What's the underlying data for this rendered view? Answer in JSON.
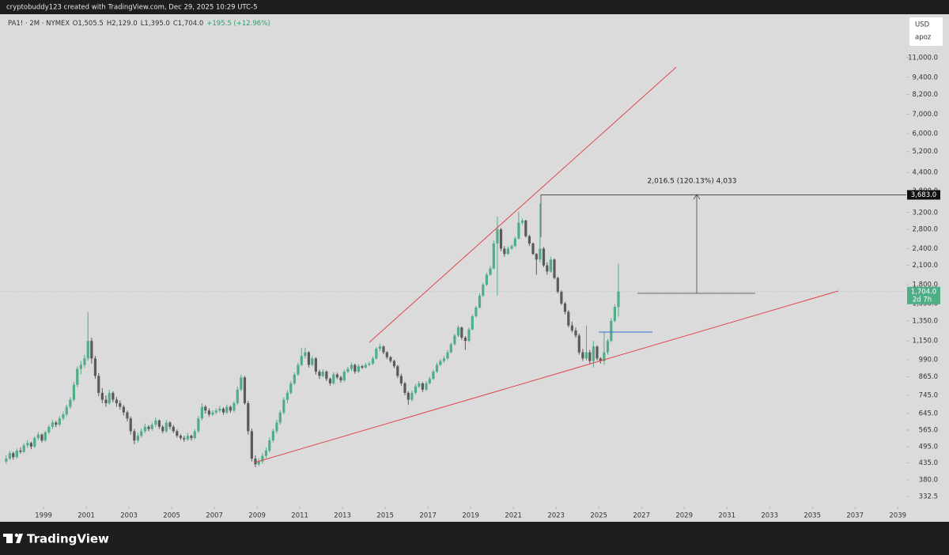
{
  "page": {
    "header": "cryptobuddy123 created with TradingView.com, Dec 29, 2025 10:29 UTC-5",
    "brand": "TradingView",
    "currency": "USD",
    "scale_mode": "apoz"
  },
  "chart_data": {
    "type": "candlestick",
    "legend_symbol": "PA1! · 2M · NYMEX",
    "legend_values": [
      "O1,505.5",
      "H2,129.0",
      "L1,395.0",
      "C1,704.0",
      "+195.5 (+12.96%)"
    ],
    "measure_label": "2,016.5 (120.13%) 4,033",
    "countdown": "2d 7h",
    "up_color": "#4fae86",
    "down_color": "#5a5a5a",
    "trend_color": "#e0454f",
    "log_scale": true,
    "xlim": [
      1996.96,
      2039.4
    ],
    "xticks": [
      1999,
      2001,
      2003,
      2005,
      2007,
      2009,
      2011,
      2013,
      2015,
      2017,
      2019,
      2021,
      2023,
      2025,
      2027,
      2029,
      2031,
      2033,
      2035,
      2037,
      2039
    ],
    "ylim": [
      272,
      15540
    ],
    "yticks": [
      {
        "value": 11000,
        "label": "11,000.0"
      },
      {
        "value": 9400,
        "label": "9,400.0"
      },
      {
        "value": 8200,
        "label": "8,200.0"
      },
      {
        "value": 7000,
        "label": "7,000.0"
      },
      {
        "value": 6000,
        "label": "6,000.0"
      },
      {
        "value": 5200,
        "label": "5,200.0"
      },
      {
        "value": 4400,
        "label": "4,400.0"
      },
      {
        "value": 3800,
        "label": "3,800.0"
      },
      {
        "value": 3200,
        "label": "3,200.0"
      },
      {
        "value": 2800,
        "label": "2,800.0"
      },
      {
        "value": 2400,
        "label": "2,400.0"
      },
      {
        "value": 2100,
        "label": "2,100.0"
      },
      {
        "value": 1800,
        "label": "1,800.0"
      },
      {
        "value": 1550,
        "label": "1,550.0"
      },
      {
        "value": 1350,
        "label": "1,350.0"
      },
      {
        "value": 1150,
        "label": "1,150.0"
      },
      {
        "value": 990,
        "label": "990.0"
      },
      {
        "value": 865,
        "label": "865.0"
      },
      {
        "value": 745,
        "label": "745.0"
      },
      {
        "value": 645,
        "label": "645.0"
      },
      {
        "value": 565,
        "label": "565.0"
      },
      {
        "value": 495,
        "label": "495.0"
      },
      {
        "value": 435,
        "label": "435.0"
      },
      {
        "value": 380,
        "label": "380.0"
      },
      {
        "value": 332.5,
        "label": "332.5"
      }
    ],
    "price_markers": [
      {
        "value": 3683,
        "label": "3,683.0"
      },
      {
        "value": 1704,
        "label": "1,704.0"
      }
    ],
    "x": [
      1997.25,
      1997.42,
      1997.58,
      1997.75,
      1997.92,
      1998.08,
      1998.25,
      1998.42,
      1998.58,
      1998.75,
      1998.92,
      1999.08,
      1999.25,
      1999.42,
      1999.58,
      1999.75,
      1999.92,
      2000.08,
      2000.25,
      2000.42,
      2000.58,
      2000.75,
      2000.92,
      2001.08,
      2001.25,
      2001.42,
      2001.58,
      2001.75,
      2001.92,
      2002.08,
      2002.25,
      2002.42,
      2002.58,
      2002.75,
      2002.92,
      2003.08,
      2003.25,
      2003.42,
      2003.58,
      2003.75,
      2003.92,
      2004.08,
      2004.25,
      2004.42,
      2004.58,
      2004.75,
      2004.92,
      2005.08,
      2005.25,
      2005.42,
      2005.58,
      2005.75,
      2005.92,
      2006.08,
      2006.25,
      2006.42,
      2006.58,
      2006.75,
      2006.92,
      2007.08,
      2007.25,
      2007.42,
      2007.58,
      2007.75,
      2007.92,
      2008.08,
      2008.25,
      2008.42,
      2008.58,
      2008.75,
      2008.92,
      2009.08,
      2009.25,
      2009.42,
      2009.58,
      2009.75,
      2009.92,
      2010.08,
      2010.25,
      2010.42,
      2010.58,
      2010.75,
      2010.92,
      2011.08,
      2011.25,
      2011.42,
      2011.58,
      2011.75,
      2011.92,
      2012.08,
      2012.25,
      2012.42,
      2012.58,
      2012.75,
      2012.92,
      2013.08,
      2013.25,
      2013.42,
      2013.58,
      2013.75,
      2013.92,
      2014.08,
      2014.25,
      2014.42,
      2014.58,
      2014.75,
      2014.92,
      2015.08,
      2015.25,
      2015.42,
      2015.58,
      2015.75,
      2015.92,
      2016.08,
      2016.25,
      2016.42,
      2016.58,
      2016.75,
      2016.92,
      2017.08,
      2017.25,
      2017.42,
      2017.58,
      2017.75,
      2017.92,
      2018.08,
      2018.25,
      2018.42,
      2018.58,
      2018.75,
      2018.92,
      2019.08,
      2019.25,
      2019.42,
      2019.58,
      2019.75,
      2019.92,
      2020.08,
      2020.25,
      2020.42,
      2020.58,
      2020.75,
      2020.92,
      2021.08,
      2021.25,
      2021.42,
      2021.58,
      2021.75,
      2021.92,
      2022.08,
      2022.25,
      2022.42,
      2022.58,
      2022.75,
      2022.92,
      2023.08,
      2023.25,
      2023.42,
      2023.58,
      2023.75,
      2023.92,
      2024.08,
      2024.25,
      2024.42,
      2024.58,
      2024.75,
      2024.92,
      2025.08,
      2025.25,
      2025.42,
      2025.58,
      2025.75,
      2025.92
    ],
    "candles": [
      [
        440,
        462,
        432,
        450
      ],
      [
        450,
        478,
        445,
        470
      ],
      [
        470,
        476,
        446,
        455
      ],
      [
        455,
        488,
        450,
        480
      ],
      [
        480,
        492,
        468,
        475
      ],
      [
        475,
        508,
        470,
        500
      ],
      [
        500,
        522,
        490,
        510
      ],
      [
        510,
        515,
        485,
        495
      ],
      [
        495,
        538,
        490,
        530
      ],
      [
        530,
        556,
        522,
        545
      ],
      [
        545,
        550,
        512,
        520
      ],
      [
        520,
        562,
        515,
        555
      ],
      [
        555,
        590,
        548,
        580
      ],
      [
        580,
        612,
        570,
        600
      ],
      [
        600,
        608,
        578,
        590
      ],
      [
        590,
        632,
        582,
        620
      ],
      [
        620,
        655,
        610,
        640
      ],
      [
        640,
        692,
        630,
        680
      ],
      [
        680,
        735,
        668,
        720
      ],
      [
        720,
        830,
        710,
        810
      ],
      [
        810,
        940,
        795,
        920
      ],
      [
        920,
        980,
        880,
        950
      ],
      [
        950,
        1030,
        930,
        1000
      ],
      [
        1000,
        1446,
        980,
        1150
      ],
      [
        1150,
        1180,
        960,
        1000
      ],
      [
        1000,
        1020,
        850,
        870
      ],
      [
        870,
        890,
        740,
        760
      ],
      [
        760,
        790,
        700,
        720
      ],
      [
        720,
        745,
        680,
        700
      ],
      [
        700,
        780,
        690,
        760
      ],
      [
        760,
        770,
        705,
        720
      ],
      [
        720,
        735,
        680,
        700
      ],
      [
        700,
        715,
        665,
        680
      ],
      [
        680,
        690,
        635,
        650
      ],
      [
        650,
        660,
        605,
        620
      ],
      [
        620,
        630,
        545,
        560
      ],
      [
        560,
        570,
        505,
        520
      ],
      [
        520,
        552,
        512,
        540
      ],
      [
        540,
        572,
        532,
        560
      ],
      [
        560,
        595,
        552,
        580
      ],
      [
        580,
        588,
        560,
        570
      ],
      [
        570,
        600,
        562,
        590
      ],
      [
        590,
        625,
        580,
        610
      ],
      [
        610,
        615,
        570,
        580
      ],
      [
        580,
        588,
        550,
        560
      ],
      [
        560,
        612,
        552,
        600
      ],
      [
        600,
        606,
        568,
        580
      ],
      [
        580,
        588,
        552,
        560
      ],
      [
        560,
        568,
        532,
        540
      ],
      [
        540,
        548,
        522,
        530
      ],
      [
        530,
        540,
        515,
        525
      ],
      [
        525,
        552,
        518,
        540
      ],
      [
        540,
        545,
        520,
        530
      ],
      [
        530,
        570,
        525,
        560
      ],
      [
        560,
        632,
        552,
        620
      ],
      [
        620,
        700,
        610,
        680
      ],
      [
        680,
        690,
        645,
        660
      ],
      [
        660,
        672,
        628,
        640
      ],
      [
        640,
        662,
        632,
        650
      ],
      [
        650,
        672,
        640,
        660
      ],
      [
        660,
        685,
        650,
        670
      ],
      [
        670,
        678,
        638,
        650
      ],
      [
        650,
        692,
        642,
        680
      ],
      [
        680,
        688,
        648,
        660
      ],
      [
        660,
        712,
        652,
        700
      ],
      [
        700,
        800,
        690,
        780
      ],
      [
        780,
        880,
        770,
        860
      ],
      [
        860,
        870,
        690,
        700
      ],
      [
        700,
        712,
        545,
        560
      ],
      [
        560,
        572,
        440,
        450
      ],
      [
        450,
        462,
        420,
        430
      ],
      [
        430,
        452,
        424,
        440
      ],
      [
        440,
        470,
        432,
        460
      ],
      [
        460,
        492,
        452,
        480
      ],
      [
        480,
        532,
        472,
        520
      ],
      [
        520,
        572,
        512,
        560
      ],
      [
        560,
        615,
        550,
        600
      ],
      [
        600,
        662,
        590,
        650
      ],
      [
        650,
        735,
        640,
        720
      ],
      [
        720,
        775,
        700,
        760
      ],
      [
        760,
        835,
        750,
        820
      ],
      [
        820,
        895,
        810,
        880
      ],
      [
        880,
        968,
        870,
        950
      ],
      [
        950,
        1085,
        940,
        1020
      ],
      [
        1020,
        1090,
        1000,
        1050
      ],
      [
        1050,
        1060,
        930,
        950
      ],
      [
        950,
        1020,
        940,
        1000
      ],
      [
        1000,
        1010,
        880,
        900
      ],
      [
        900,
        915,
        850,
        870
      ],
      [
        870,
        918,
        860,
        900
      ],
      [
        900,
        910,
        835,
        850
      ],
      [
        850,
        860,
        805,
        820
      ],
      [
        820,
        895,
        812,
        880
      ],
      [
        880,
        892,
        848,
        860
      ],
      [
        860,
        872,
        825,
        840
      ],
      [
        840,
        915,
        832,
        900
      ],
      [
        900,
        935,
        890,
        920
      ],
      [
        920,
        968,
        905,
        950
      ],
      [
        950,
        960,
        885,
        900
      ],
      [
        900,
        955,
        892,
        940
      ],
      [
        940,
        950,
        918,
        930
      ],
      [
        930,
        965,
        922,
        950
      ],
      [
        950,
        975,
        940,
        960
      ],
      [
        960,
        1015,
        950,
        1000
      ],
      [
        1000,
        1095,
        990,
        1080
      ],
      [
        1080,
        1125,
        1060,
        1100
      ],
      [
        1100,
        1110,
        1035,
        1050
      ],
      [
        1050,
        1060,
        995,
        1010
      ],
      [
        1010,
        1020,
        965,
        980
      ],
      [
        980,
        990,
        925,
        940
      ],
      [
        940,
        950,
        855,
        870
      ],
      [
        870,
        885,
        805,
        820
      ],
      [
        820,
        830,
        745,
        760
      ],
      [
        760,
        770,
        690,
        720
      ],
      [
        720,
        775,
        710,
        760
      ],
      [
        760,
        815,
        750,
        800
      ],
      [
        800,
        835,
        790,
        820
      ],
      [
        820,
        828,
        765,
        780
      ],
      [
        780,
        835,
        772,
        820
      ],
      [
        820,
        865,
        812,
        850
      ],
      [
        850,
        915,
        842,
        900
      ],
      [
        900,
        968,
        890,
        950
      ],
      [
        950,
        995,
        940,
        980
      ],
      [
        980,
        1020,
        965,
        1000
      ],
      [
        1000,
        1070,
        990,
        1050
      ],
      [
        1050,
        1135,
        1040,
        1120
      ],
      [
        1120,
        1218,
        1110,
        1200
      ],
      [
        1200,
        1300,
        1185,
        1280
      ],
      [
        1280,
        1290,
        1160,
        1180
      ],
      [
        1180,
        1195,
        1070,
        1150
      ],
      [
        1150,
        1280,
        1140,
        1260
      ],
      [
        1260,
        1420,
        1250,
        1400
      ],
      [
        1400,
        1520,
        1385,
        1500
      ],
      [
        1500,
        1680,
        1490,
        1650
      ],
      [
        1650,
        1830,
        1630,
        1800
      ],
      [
        1800,
        1980,
        1780,
        1950
      ],
      [
        1950,
        2090,
        1930,
        2050
      ],
      [
        2050,
        2560,
        2030,
        2500
      ],
      [
        2500,
        3100,
        1650,
        2800
      ],
      [
        2800,
        2830,
        2350,
        2400
      ],
      [
        2400,
        2450,
        2250,
        2300
      ],
      [
        2300,
        2440,
        2280,
        2400
      ],
      [
        2400,
        2480,
        2380,
        2450
      ],
      [
        2450,
        2640,
        2430,
        2600
      ],
      [
        2600,
        3220,
        2580,
        2950
      ],
      [
        2950,
        3050,
        2900,
        3000
      ],
      [
        3000,
        3020,
        2620,
        2650
      ],
      [
        2650,
        2680,
        2450,
        2500
      ],
      [
        2500,
        2520,
        2280,
        2300
      ],
      [
        2300,
        2320,
        1950,
        2200
      ],
      [
        2200,
        3440,
        2150,
        2400
      ],
      [
        2400,
        2430,
        2070,
        2100
      ],
      [
        2100,
        2150,
        1950,
        2000
      ],
      [
        2000,
        2250,
        1980,
        2200
      ],
      [
        2200,
        2220,
        1880,
        1900
      ],
      [
        1900,
        1920,
        1680,
        1700
      ],
      [
        1700,
        1720,
        1530,
        1550
      ],
      [
        1550,
        1570,
        1420,
        1450
      ],
      [
        1450,
        1470,
        1280,
        1300
      ],
      [
        1300,
        1340,
        1230,
        1250
      ],
      [
        1250,
        1280,
        1180,
        1200
      ],
      [
        1200,
        1220,
        1030,
        1050
      ],
      [
        1050,
        1080,
        980,
        1000
      ],
      [
        1000,
        1300,
        985,
        1050
      ],
      [
        1050,
        1070,
        960,
        980
      ],
      [
        980,
        1150,
        930,
        1100
      ],
      [
        1100,
        1110,
        985,
        1000
      ],
      [
        1000,
        1010,
        960,
        980
      ],
      [
        980,
        1230,
        950,
        1050
      ],
      [
        1050,
        1170,
        1030,
        1150
      ],
      [
        1150,
        1380,
        1140,
        1350
      ],
      [
        1350,
        1540,
        1335,
        1508.5
      ],
      [
        1505.5,
        2129,
        1395,
        1704
      ]
    ]
  }
}
